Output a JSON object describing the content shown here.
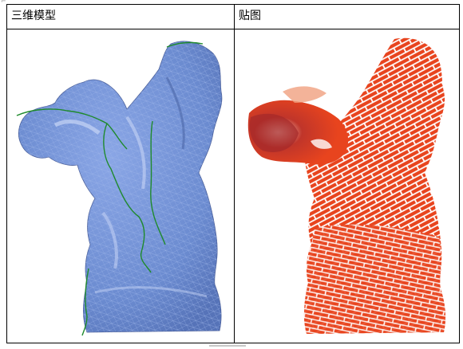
{
  "table": {
    "headers": [
      "三维模型",
      "贴图"
    ],
    "images": [
      {
        "icon": "gargoyle-mesh-model-image",
        "fill_color": "#6e8fd4",
        "seam_color": "#1f8a2c"
      },
      {
        "icon": "gargoyle-brick-texture-image",
        "fill_color": "#e8441e",
        "line_color": "#ffffff"
      }
    ]
  },
  "corner_glyph": "⌐"
}
